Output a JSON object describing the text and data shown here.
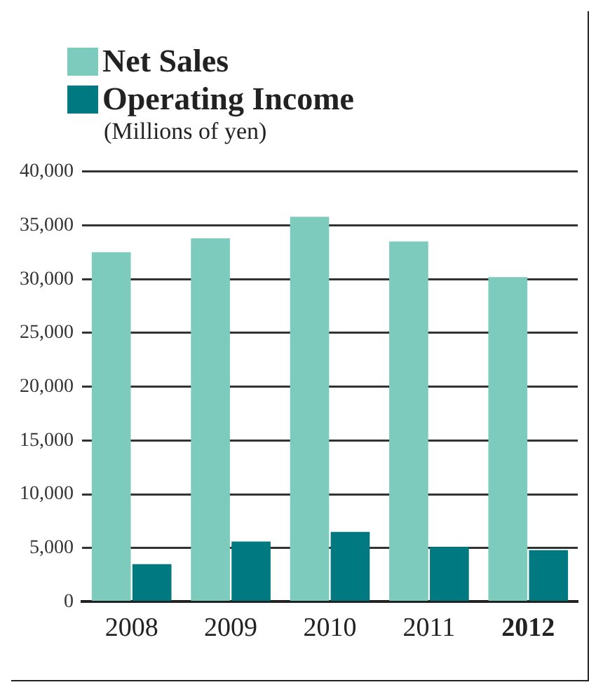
{
  "chart_data": {
    "type": "bar",
    "ylabel": "(Millions of yen)",
    "categories": [
      "2008",
      "2009",
      "2010",
      "2011",
      "2012"
    ],
    "series": [
      {
        "name": "Net Sales",
        "color": "#7dcbbd",
        "values": [
          32500,
          33800,
          35800,
          33500,
          30200
        ]
      },
      {
        "name": "Operating Income",
        "color": "#007a80",
        "values": [
          3500,
          5600,
          6500,
          5100,
          4800
        ]
      }
    ],
    "ylim": [
      0,
      40000
    ],
    "yticks": [
      0,
      {
        "value": 5000,
        "label": "5,000"
      },
      {
        "value": 10000,
        "label": "10,000"
      },
      {
        "value": 15000,
        "label": "15,000"
      },
      {
        "value": 20000,
        "label": "20,000"
      },
      {
        "value": 25000,
        "label": "25,000"
      },
      {
        "value": 30000,
        "label": "30,000"
      },
      {
        "value": 35000,
        "label": "35,000"
      },
      {
        "value": 40000,
        "label": "40,000"
      }
    ],
    "grid": "y",
    "legend": "top left"
  }
}
